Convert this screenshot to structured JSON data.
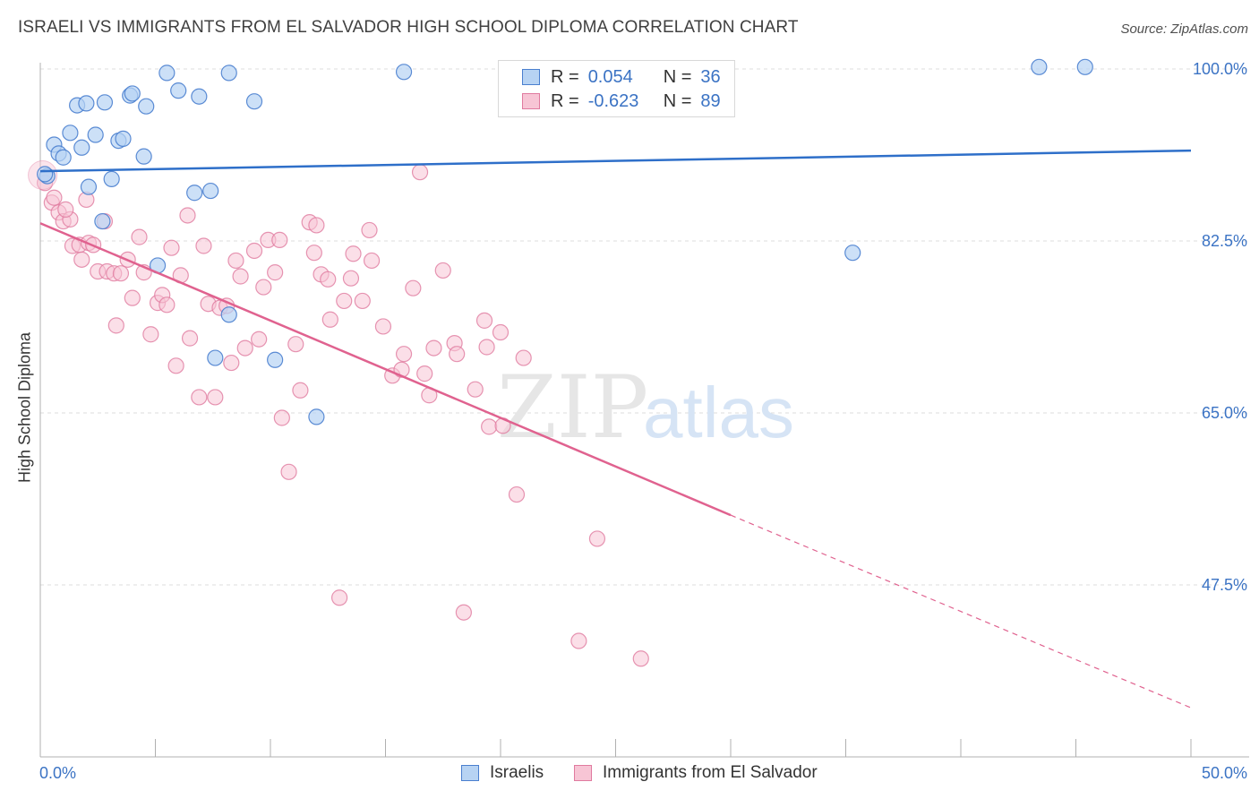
{
  "header": {
    "title": "ISRAELI VS IMMIGRANTS FROM EL SALVADOR HIGH SCHOOL DIPLOMA CORRELATION CHART",
    "source": "Source: ZipAtlas.com"
  },
  "watermark": {
    "zip": "ZIP",
    "atlas": "atlas"
  },
  "legend": {
    "rows": [
      {
        "r_label": "R =",
        "r_value": "0.054",
        "n_label": "N =",
        "n_value": "36"
      },
      {
        "r_label": "R =",
        "r_value": "-0.623",
        "n_label": "N =",
        "n_value": "89"
      }
    ]
  },
  "colors": {
    "israelis_fill": "#b7d3f3",
    "israelis_stroke": "#4a7fcf",
    "israelis_line": "#2e6fc9",
    "salvador_fill": "#f7c5d5",
    "salvador_stroke": "#e07a9f",
    "salvador_line": "#e0628f",
    "grid": "#dcdcdc",
    "axis_text": "#3b73c4"
  },
  "chart_data": {
    "type": "scatter",
    "title": "ISRAELI VS IMMIGRANTS FROM EL SALVADOR HIGH SCHOOL DIPLOMA CORRELATION CHART",
    "xlabel": "",
    "ylabel": "High School Diploma",
    "xlim": [
      0,
      50
    ],
    "ylim": [
      30,
      102
    ],
    "x_tick_labels": [
      "0.0%",
      "50.0%"
    ],
    "y_ticks": [
      47.5,
      65.0,
      82.5,
      100.0
    ],
    "y_tick_labels": [
      "47.5%",
      "65.0%",
      "82.5%",
      "100.0%"
    ],
    "grid": true,
    "legend_position": "top-center",
    "series": [
      {
        "name": "Israelis",
        "r": 0.054,
        "n": 36,
        "trend": {
          "x": [
            0,
            50
          ],
          "y": [
            89.6,
            91.7
          ],
          "dashed_to": null
        },
        "points": [
          [
            0.3,
            89.1
          ],
          [
            0.6,
            92.3
          ],
          [
            0.8,
            91.4
          ],
          [
            1.0,
            91.0
          ],
          [
            1.3,
            93.5
          ],
          [
            1.6,
            96.3
          ],
          [
            2.0,
            96.5
          ],
          [
            1.8,
            92.0
          ],
          [
            2.4,
            93.3
          ],
          [
            2.8,
            96.6
          ],
          [
            2.1,
            88.0
          ],
          [
            3.1,
            88.8
          ],
          [
            3.4,
            92.7
          ],
          [
            3.6,
            92.9
          ],
          [
            3.9,
            97.3
          ],
          [
            4.0,
            97.5
          ],
          [
            4.6,
            96.2
          ],
          [
            4.5,
            91.1
          ],
          [
            5.5,
            99.6
          ],
          [
            6.0,
            97.8
          ],
          [
            6.9,
            97.2
          ],
          [
            6.7,
            87.4
          ],
          [
            7.4,
            87.6
          ],
          [
            8.2,
            99.6
          ],
          [
            9.3,
            96.7
          ],
          [
            15.8,
            99.7
          ],
          [
            2.7,
            84.5
          ],
          [
            5.1,
            80.0
          ],
          [
            8.2,
            75.0
          ],
          [
            7.6,
            70.6
          ],
          [
            10.2,
            70.4
          ],
          [
            12.0,
            64.6
          ],
          [
            35.3,
            81.3
          ],
          [
            43.4,
            100.2
          ],
          [
            45.4,
            100.2
          ],
          [
            0.2,
            89.3
          ]
        ]
      },
      {
        "name": "Immigrants from El Salvador",
        "r": -0.623,
        "n": 89,
        "trend": {
          "x": [
            0,
            30
          ],
          "y": [
            84.3,
            54.6
          ],
          "dashed_to": [
            50,
            35.0
          ]
        },
        "points": [
          [
            0.2,
            88.4
          ],
          [
            0.5,
            86.4
          ],
          [
            0.8,
            85.4
          ],
          [
            1.0,
            84.5
          ],
          [
            1.3,
            84.7
          ],
          [
            1.4,
            82.0
          ],
          [
            1.7,
            82.1
          ],
          [
            1.8,
            80.6
          ],
          [
            2.1,
            82.3
          ],
          [
            2.3,
            82.1
          ],
          [
            2.5,
            79.4
          ],
          [
            2.8,
            84.5
          ],
          [
            2.9,
            79.4
          ],
          [
            3.2,
            79.2
          ],
          [
            3.5,
            79.2
          ],
          [
            3.8,
            80.6
          ],
          [
            4.0,
            76.7
          ],
          [
            4.3,
            82.9
          ],
          [
            4.5,
            79.3
          ],
          [
            4.8,
            73.0
          ],
          [
            5.1,
            76.2
          ],
          [
            5.3,
            77.0
          ],
          [
            5.5,
            76.0
          ],
          [
            5.7,
            81.8
          ],
          [
            6.1,
            79.0
          ],
          [
            6.4,
            85.1
          ],
          [
            6.5,
            72.6
          ],
          [
            6.9,
            66.6
          ],
          [
            7.1,
            82.0
          ],
          [
            7.3,
            76.1
          ],
          [
            7.6,
            66.6
          ],
          [
            7.8,
            75.7
          ],
          [
            8.1,
            75.9
          ],
          [
            8.3,
            70.1
          ],
          [
            8.5,
            80.5
          ],
          [
            8.7,
            78.9
          ],
          [
            8.9,
            71.6
          ],
          [
            9.3,
            81.5
          ],
          [
            9.5,
            72.5
          ],
          [
            9.7,
            77.8
          ],
          [
            9.9,
            82.6
          ],
          [
            10.2,
            79.3
          ],
          [
            10.4,
            82.6
          ],
          [
            10.5,
            64.5
          ],
          [
            10.8,
            59.0
          ],
          [
            11.1,
            72.0
          ],
          [
            11.3,
            67.3
          ],
          [
            11.7,
            84.4
          ],
          [
            11.9,
            81.3
          ],
          [
            12.0,
            84.1
          ],
          [
            12.2,
            79.1
          ],
          [
            12.5,
            78.6
          ],
          [
            12.6,
            74.5
          ],
          [
            13.0,
            46.2
          ],
          [
            13.2,
            76.4
          ],
          [
            13.5,
            78.7
          ],
          [
            13.6,
            81.2
          ],
          [
            14.0,
            76.4
          ],
          [
            14.3,
            83.6
          ],
          [
            14.4,
            80.5
          ],
          [
            14.9,
            73.8
          ],
          [
            15.3,
            68.8
          ],
          [
            15.7,
            69.4
          ],
          [
            15.8,
            71.0
          ],
          [
            16.2,
            77.7
          ],
          [
            16.5,
            89.5
          ],
          [
            16.7,
            69.0
          ],
          [
            16.9,
            66.8
          ],
          [
            17.1,
            71.6
          ],
          [
            17.5,
            79.5
          ],
          [
            18.0,
            72.1
          ],
          [
            18.1,
            71.0
          ],
          [
            18.4,
            44.7
          ],
          [
            18.9,
            67.4
          ],
          [
            19.3,
            74.4
          ],
          [
            19.4,
            71.7
          ],
          [
            19.5,
            63.6
          ],
          [
            20.0,
            73.2
          ],
          [
            20.1,
            63.7
          ],
          [
            20.7,
            56.7
          ],
          [
            21.0,
            70.6
          ],
          [
            23.4,
            41.8
          ],
          [
            24.2,
            52.2
          ],
          [
            26.1,
            40.0
          ],
          [
            5.9,
            69.8
          ],
          [
            3.3,
            73.9
          ],
          [
            0.6,
            86.9
          ],
          [
            1.1,
            85.7
          ],
          [
            2.0,
            86.7
          ]
        ]
      }
    ]
  },
  "axes": {
    "x_min_label": "0.0%",
    "x_max_label": "50.0%"
  },
  "bottom_legend": {
    "items": [
      {
        "label": "Israelis"
      },
      {
        "label": "Immigrants from El Salvador"
      }
    ]
  },
  "ylabel": "High School Diploma"
}
